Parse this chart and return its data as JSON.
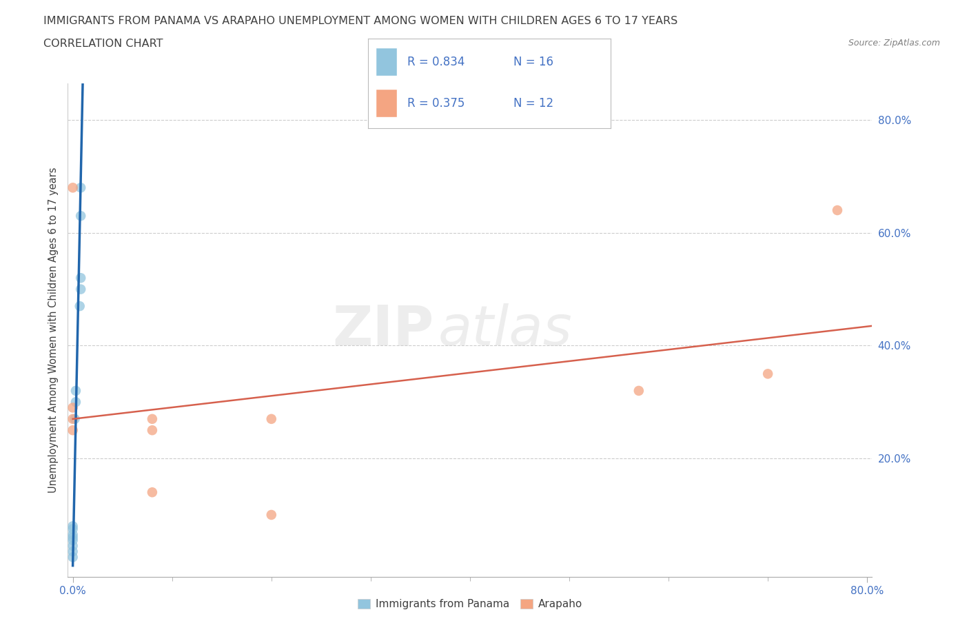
{
  "title_line1": "IMMIGRANTS FROM PANAMA VS ARAPAHO UNEMPLOYMENT AMONG WOMEN WITH CHILDREN AGES 6 TO 17 YEARS",
  "title_line2": "CORRELATION CHART",
  "source_text": "Source: ZipAtlas.com",
  "ylabel": "Unemployment Among Women with Children Ages 6 to 17 years",
  "xlim": [
    -0.005,
    0.805
  ],
  "ylim": [
    -0.01,
    0.865
  ],
  "xtick_major": [
    0.0,
    0.8
  ],
  "xtick_minor": [
    0.1,
    0.2,
    0.3,
    0.4,
    0.5,
    0.6,
    0.7
  ],
  "xtick_major_labels": [
    "0.0%",
    "80.0%"
  ],
  "ytick_vals": [
    0.2,
    0.4,
    0.6,
    0.8
  ],
  "ytick_labels": [
    "20.0%",
    "40.0%",
    "60.0%",
    "80.0%"
  ],
  "blue_scatter_x": [
    0.0,
    0.0,
    0.0,
    0.0,
    0.0,
    0.0,
    0.0,
    0.0,
    0.002,
    0.003,
    0.003,
    0.007,
    0.008,
    0.008,
    0.008,
    0.008
  ],
  "blue_scatter_y": [
    0.025,
    0.035,
    0.045,
    0.055,
    0.06,
    0.065,
    0.075,
    0.08,
    0.27,
    0.3,
    0.32,
    0.47,
    0.5,
    0.52,
    0.63,
    0.68
  ],
  "pink_scatter_x": [
    0.0,
    0.0,
    0.0,
    0.0,
    0.08,
    0.08,
    0.08,
    0.2,
    0.2,
    0.57,
    0.7,
    0.77
  ],
  "pink_scatter_y": [
    0.25,
    0.27,
    0.29,
    0.68,
    0.14,
    0.25,
    0.27,
    0.1,
    0.27,
    0.32,
    0.35,
    0.64
  ],
  "blue_line_x": [
    0.0,
    0.01
  ],
  "blue_line_y": [
    0.01,
    0.865
  ],
  "pink_line_x": [
    0.0,
    0.805
  ],
  "pink_line_y": [
    0.27,
    0.435
  ],
  "blue_color": "#92c5de",
  "pink_color": "#f4a582",
  "blue_line_color": "#2166ac",
  "pink_line_color": "#d6604d",
  "legend_r_blue": "0.834",
  "legend_n_blue": "16",
  "legend_r_pink": "0.375",
  "legend_n_pink": "12",
  "legend_label_blue": "Immigrants from Panama",
  "legend_label_pink": "Arapaho",
  "watermark_zip": "ZIP",
  "watermark_atlas": "atlas",
  "grid_color": "#cccccc",
  "bg_color": "#ffffff",
  "title_color": "#404040",
  "axis_label_color": "#404040",
  "tick_color": "#4472c4",
  "source_color": "#808080",
  "legend_value_color": "#4472c4",
  "legend_label_color": "#404040"
}
